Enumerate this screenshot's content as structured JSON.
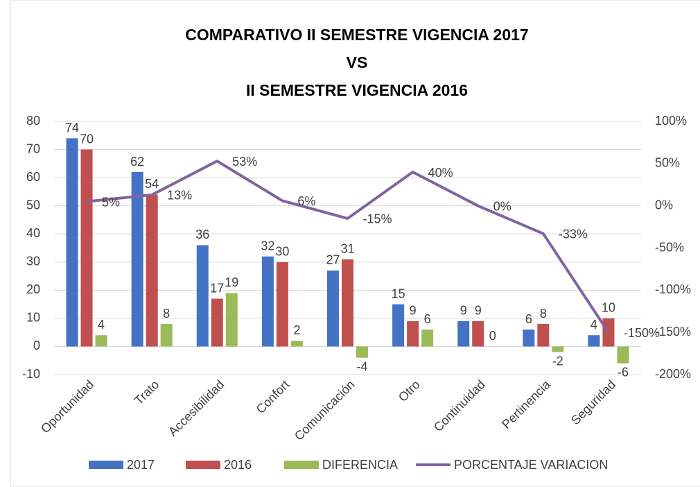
{
  "chart_data": {
    "type": "bar",
    "title": [
      "COMPARATIVO II SEMESTRE VIGENCIA 2017",
      "VS",
      "II SEMESTRE VIGENCIA 2016"
    ],
    "categories": [
      "Oportunidad",
      "Trato",
      "Accesibilidad",
      "Confort",
      "Comunicación",
      "Otro",
      "Continuidad",
      "Pertinencia",
      "Seguridad"
    ],
    "series": [
      {
        "name": "2017",
        "color": "#4472c4",
        "values": [
          74,
          62,
          36,
          32,
          27,
          15,
          9,
          6,
          4
        ]
      },
      {
        "name": "2016",
        "color": "#c0504d",
        "values": [
          70,
          54,
          17,
          30,
          31,
          9,
          9,
          8,
          10
        ]
      },
      {
        "name": "DIFERENCIA",
        "color": "#9bbb59",
        "values": [
          4,
          8,
          19,
          2,
          -4,
          6,
          0,
          -2,
          -6
        ]
      },
      {
        "name": "PORCENTAJE VARIACION",
        "color": "#8064a2",
        "type": "line",
        "axis": "y2",
        "values": [
          5,
          13,
          53,
          6,
          -15,
          40,
          0,
          -33,
          -150
        ],
        "value_labels": [
          "5%",
          "13%",
          "53%",
          "6%",
          "-15%",
          "40%",
          "0%",
          "-33%",
          "-150%"
        ]
      }
    ],
    "ylim": [
      -10,
      80
    ],
    "yticks": [
      -10,
      0,
      10,
      20,
      30,
      40,
      50,
      60,
      70,
      80
    ],
    "y2lim": [
      -200,
      100
    ],
    "y2ticks": [
      {
        "value": -200,
        "label": "-200%"
      },
      {
        "value": -150,
        "label": "-150%"
      },
      {
        "value": -100,
        "label": "-100%"
      },
      {
        "value": -50,
        "label": "-50%"
      },
      {
        "value": 0,
        "label": "0%"
      },
      {
        "value": 50,
        "label": "50%"
      },
      {
        "value": 100,
        "label": "100%"
      }
    ],
    "grid": true,
    "legend": "bottom"
  }
}
